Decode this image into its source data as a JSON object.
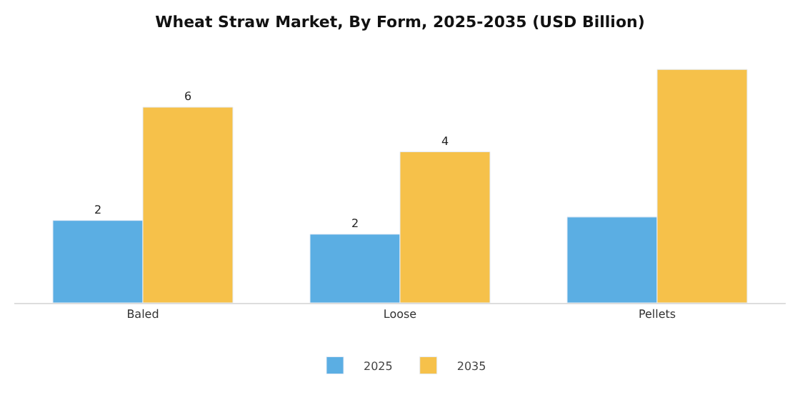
{
  "chart_data": {
    "type": "bar",
    "title": "Wheat Straw Market, By Form, 2025-2035 (USD Billion)",
    "categories": [
      "Baled",
      "Loose",
      "Pellets"
    ],
    "series": [
      {
        "name": "2025",
        "color": "#5baee3",
        "values": [
          2.4,
          2.0,
          2.5
        ],
        "value_labels": [
          "2",
          "2",
          null
        ]
      },
      {
        "name": "2035",
        "color": "#f6c14a",
        "values": [
          5.7,
          4.4,
          6.8
        ],
        "value_labels": [
          "6",
          "4",
          null
        ]
      }
    ],
    "legend": "bottom"
  }
}
